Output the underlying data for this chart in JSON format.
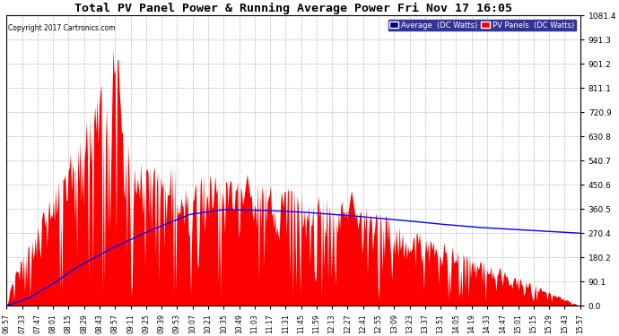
{
  "title": "Total PV Panel Power & Running Average Power Fri Nov 17 16:05",
  "copyright": "Copyright 2017 Cartronics.com",
  "ylabel_right_ticks": [
    0.0,
    90.1,
    180.2,
    270.4,
    360.5,
    450.6,
    540.7,
    630.8,
    720.9,
    811.1,
    901.2,
    991.3,
    1081.4
  ],
  "ymax": 1081.4,
  "ymin": 0.0,
  "legend_avg_label": "Average  (DC Watts)",
  "legend_pv_label": "PV Panels  (DC Watts)",
  "avg_color": "blue",
  "pv_color": "red",
  "plot_bg_color": "#ffffff",
  "grid_color": "#aaaaaa",
  "title_color": "black",
  "fig_bg_color": "#ffffff",
  "x_tick_labels": [
    "06:57",
    "07:33",
    "07:47",
    "08:01",
    "08:15",
    "08:29",
    "08:43",
    "08:57",
    "09:11",
    "09:25",
    "09:39",
    "09:53",
    "10:07",
    "10:21",
    "10:35",
    "10:49",
    "11:03",
    "11:17",
    "11:31",
    "11:45",
    "11:59",
    "12:13",
    "12:27",
    "12:41",
    "12:55",
    "13:09",
    "13:23",
    "13:37",
    "13:51",
    "14:05",
    "14:19",
    "14:33",
    "14:47",
    "15:01",
    "15:15",
    "15:29",
    "15:43",
    "15:57"
  ],
  "avg_line_points": [
    [
      0,
      0
    ],
    [
      0.04,
      30
    ],
    [
      0.08,
      80
    ],
    [
      0.12,
      140
    ],
    [
      0.18,
      210
    ],
    [
      0.25,
      280
    ],
    [
      0.32,
      340
    ],
    [
      0.38,
      358
    ],
    [
      0.45,
      355
    ],
    [
      0.52,
      348
    ],
    [
      0.6,
      335
    ],
    [
      0.68,
      320
    ],
    [
      0.75,
      305
    ],
    [
      0.82,
      292
    ],
    [
      0.9,
      282
    ],
    [
      1.0,
      270
    ]
  ]
}
